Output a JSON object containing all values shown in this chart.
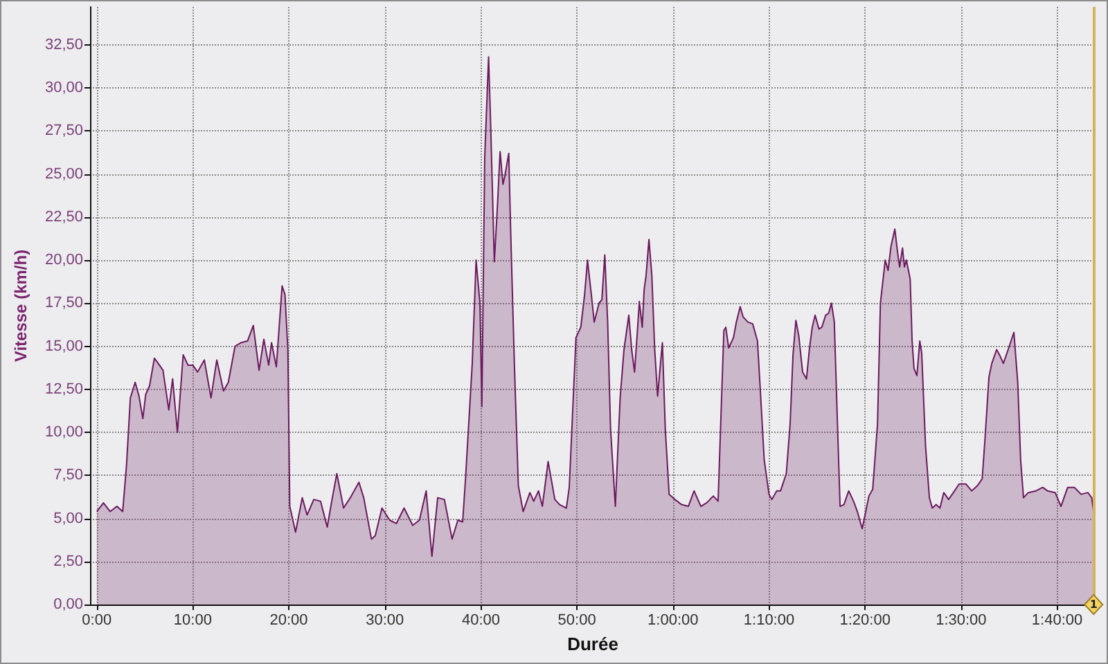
{
  "chart_data": {
    "type": "area",
    "xlabel": "Durée",
    "ylabel": "Vitesse (km/h)",
    "x": [
      0,
      0.7,
      1.4,
      2.1,
      2.7,
      3.1,
      3.5,
      4.0,
      4.4,
      4.8,
      5.1,
      5.5,
      6.0,
      6.4,
      6.9,
      7.5,
      7.9,
      8.4,
      9.0,
      9.5,
      10.0,
      10.5,
      11.2,
      11.9,
      12.5,
      13.2,
      13.7,
      14.4,
      15.0,
      15.7,
      16.3,
      16.9,
      17.4,
      17.9,
      18.2,
      18.7,
      19.3,
      19.6,
      19.9,
      20.1,
      20.7,
      21.4,
      21.9,
      22.6,
      23.3,
      24.0,
      24.5,
      25.0,
      25.7,
      26.4,
      27.3,
      27.8,
      28.6,
      29.0,
      29.7,
      30.5,
      31.2,
      32.0,
      32.9,
      33.6,
      34.3,
      34.9,
      35.5,
      36.2,
      37.0,
      37.6,
      38.1,
      38.4,
      39.1,
      39.5,
      39.9,
      40.1,
      40.4,
      40.8,
      41.0,
      41.4,
      41.7,
      42.0,
      42.3,
      42.5,
      42.9,
      43.1,
      43.5,
      43.9,
      44.4,
      45.1,
      45.5,
      46.0,
      46.4,
      47.0,
      47.7,
      48.2,
      48.9,
      49.2,
      49.9,
      50.4,
      50.8,
      51.1,
      51.5,
      51.8,
      52.3,
      52.6,
      52.9,
      53.2,
      53.5,
      54.0,
      54.5,
      54.9,
      55.4,
      55.7,
      56.0,
      56.3,
      56.5,
      56.8,
      57.0,
      57.2,
      57.5,
      57.8,
      58.1,
      58.4,
      58.7,
      58.9,
      59.2,
      59.6,
      60.2,
      60.9,
      61.6,
      62.2,
      62.9,
      63.5,
      64.2,
      64.7,
      65.0,
      65.3,
      65.5,
      65.8,
      66.3,
      66.6,
      67.0,
      67.3,
      67.8,
      68.3,
      68.8,
      69.1,
      69.5,
      70.0,
      70.3,
      70.8,
      71.2,
      71.8,
      72.2,
      72.5,
      72.8,
      73.1,
      73.5,
      73.9,
      74.2,
      74.5,
      74.8,
      75.2,
      75.5,
      75.9,
      76.2,
      76.5,
      76.8,
      77.1,
      77.4,
      77.8,
      78.3,
      78.8,
      79.2,
      79.7,
      80.0,
      80.4,
      80.8,
      81.3,
      81.6,
      82.1,
      82.4,
      82.7,
      83.1,
      83.4,
      83.6,
      83.9,
      84.1,
      84.3,
      84.7,
      84.9,
      85.1,
      85.4,
      85.7,
      85.9,
      86.3,
      86.7,
      87.0,
      87.4,
      87.8,
      88.2,
      88.7,
      89.2,
      89.8,
      90.5,
      91.1,
      91.7,
      92.2,
      92.5,
      92.9,
      93.2,
      93.7,
      94.0,
      94.4,
      94.9,
      95.2,
      95.5,
      95.9,
      96.2,
      96.5,
      97.0,
      97.8,
      98.5,
      99.0,
      99.8,
      100.4,
      101.1,
      101.8,
      102.5,
      103.2,
      103.6,
      103.8
    ],
    "series": [
      {
        "color": "#6b1a5e",
        "values": [
          5.4,
          5.9,
          5.4,
          5.7,
          5.4,
          8.1,
          12.0,
          12.9,
          12.1,
          10.8,
          12.2,
          12.7,
          14.3,
          14.0,
          13.6,
          11.3,
          13.1,
          10.0,
          14.5,
          13.9,
          13.9,
          13.5,
          14.2,
          12.0,
          14.2,
          12.4,
          12.9,
          15.0,
          15.2,
          15.3,
          16.2,
          13.6,
          15.4,
          13.9,
          15.2,
          13.8,
          18.5,
          18.0,
          14.8,
          5.7,
          4.2,
          6.2,
          5.2,
          6.1,
          6.0,
          4.5,
          6.1,
          7.6,
          5.6,
          6.2,
          7.1,
          6.2,
          3.8,
          4.0,
          5.6,
          4.9,
          4.7,
          5.6,
          4.6,
          4.9,
          6.6,
          2.8,
          6.2,
          6.1,
          3.8,
          4.9,
          4.8,
          7.3,
          14.0,
          20.0,
          17.5,
          11.5,
          26.0,
          31.8,
          28.2,
          19.9,
          22.9,
          26.3,
          24.4,
          24.9,
          26.2,
          21.7,
          13.7,
          6.9,
          5.4,
          6.5,
          6.0,
          6.6,
          5.7,
          8.3,
          6.1,
          5.8,
          5.6,
          6.8,
          15.5,
          16.1,
          18.0,
          20.0,
          18.0,
          16.4,
          17.5,
          17.7,
          20.3,
          16.4,
          10.2,
          5.7,
          12.0,
          14.8,
          16.8,
          14.8,
          13.5,
          15.9,
          17.6,
          16.1,
          18.3,
          19.1,
          21.2,
          19.1,
          14.8,
          12.1,
          14.0,
          15.2,
          10.2,
          6.4,
          6.1,
          5.8,
          5.7,
          6.6,
          5.7,
          5.9,
          6.3,
          6.0,
          11.0,
          15.9,
          16.1,
          14.9,
          15.5,
          16.4,
          17.3,
          16.7,
          16.4,
          16.3,
          15.3,
          12.4,
          8.4,
          6.4,
          6.1,
          6.6,
          6.6,
          7.6,
          10.5,
          14.5,
          16.5,
          15.6,
          13.5,
          13.1,
          14.8,
          16.1,
          16.8,
          16.0,
          16.1,
          16.8,
          16.9,
          17.5,
          16.4,
          11.0,
          5.7,
          5.8,
          6.6,
          6.0,
          5.4,
          4.4,
          5.2,
          6.3,
          6.7,
          10.5,
          17.5,
          20.0,
          19.4,
          20.8,
          21.8,
          20.4,
          19.6,
          20.7,
          19.6,
          20.0,
          18.9,
          15.3,
          13.7,
          13.3,
          15.3,
          14.6,
          9.2,
          6.2,
          5.6,
          5.8,
          5.6,
          6.5,
          6.1,
          6.5,
          7.0,
          7.0,
          6.6,
          6.9,
          7.3,
          9.7,
          13.2,
          14.0,
          14.8,
          14.5,
          14.0,
          14.8,
          15.3,
          15.8,
          12.9,
          8.4,
          6.2,
          6.5,
          6.6,
          6.8,
          6.6,
          6.5,
          5.7,
          6.8,
          6.8,
          6.4,
          6.5,
          6.2,
          5.4
        ]
      }
    ],
    "xlim": [
      -0.7,
      104
    ],
    "ylim": [
      0,
      34.7
    ],
    "xticks": [
      {
        "value": 0,
        "label": "0:00"
      },
      {
        "value": 10,
        "label": "10:00"
      },
      {
        "value": 20,
        "label": "20:00"
      },
      {
        "value": 30,
        "label": "30:00"
      },
      {
        "value": 40,
        "label": "40:00"
      },
      {
        "value": 50,
        "label": "50:00"
      },
      {
        "value": 60,
        "label": "1:00:00"
      },
      {
        "value": 70,
        "label": "1:10:00"
      },
      {
        "value": 80,
        "label": "1:20:00"
      },
      {
        "value": 90,
        "label": "1:30:00"
      },
      {
        "value": 100,
        "label": "1:40:00"
      }
    ],
    "yticks": [
      {
        "value": 0,
        "label": "0,00"
      },
      {
        "value": 2.5,
        "label": "2,50"
      },
      {
        "value": 5,
        "label": "5,00"
      },
      {
        "value": 7.5,
        "label": "7,50"
      },
      {
        "value": 10,
        "label": "10,00"
      },
      {
        "value": 12.5,
        "label": "12,50"
      },
      {
        "value": 15,
        "label": "15,00"
      },
      {
        "value": 17.5,
        "label": "17,50"
      },
      {
        "value": 20,
        "label": "20,00"
      },
      {
        "value": 22.5,
        "label": "22,50"
      },
      {
        "value": 25,
        "label": "25,00"
      },
      {
        "value": 27.5,
        "label": "27,50"
      },
      {
        "value": 30,
        "label": "30,00"
      },
      {
        "value": 32.5,
        "label": "32,50"
      }
    ],
    "grid": true,
    "ref_lines": [
      {
        "axis": "x",
        "value": 103.8,
        "color": "#d6b25c"
      }
    ],
    "annotations": [
      {
        "text": "1",
        "x": 103.8,
        "y": 0
      }
    ]
  }
}
